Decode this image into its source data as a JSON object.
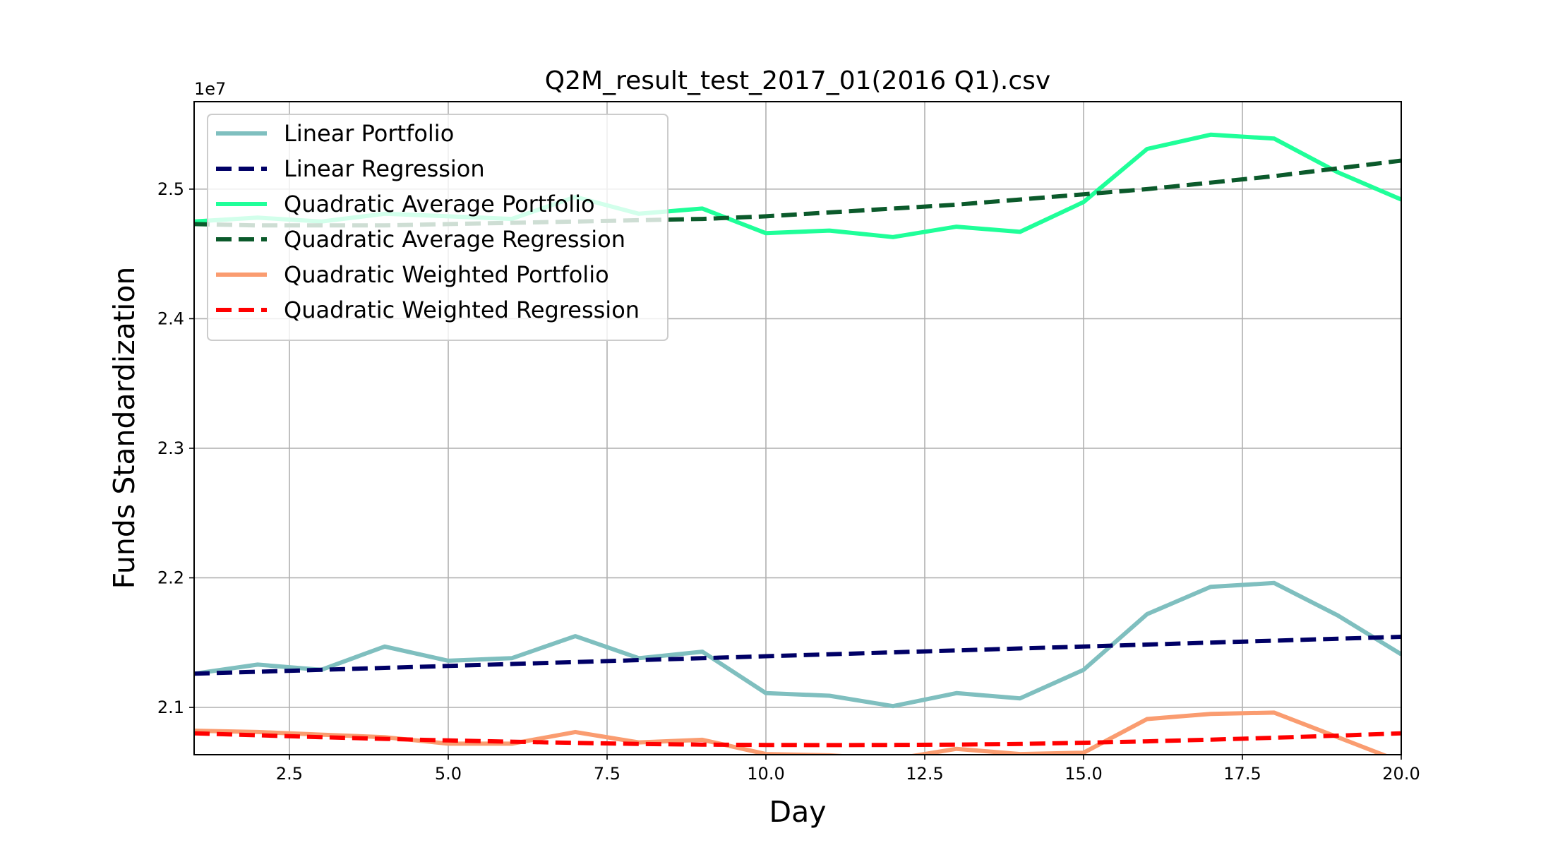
{
  "chart_data": {
    "type": "line",
    "title": "Q2M_result_test_2017_01(2016 Q1).csv",
    "xlabel": "Day",
    "ylabel": "Funds Standardization",
    "y_offset_label": "1e7",
    "xlim": [
      1,
      20
    ],
    "ylim": [
      2.0635,
      2.5675
    ],
    "x_ticks": [
      2.5,
      5.0,
      7.5,
      10.0,
      12.5,
      15.0,
      17.5,
      20.0
    ],
    "x_tick_labels": [
      "2.5",
      "5.0",
      "7.5",
      "10.0",
      "12.5",
      "15.0",
      "17.5",
      "20.0"
    ],
    "y_ticks": [
      2.1,
      2.2,
      2.3,
      2.4,
      2.5
    ],
    "y_tick_labels": [
      "2.1",
      "2.2",
      "2.3",
      "2.4",
      "2.5"
    ],
    "grid": true,
    "legend_position": "upper-left",
    "x": [
      1,
      2,
      3,
      4,
      5,
      6,
      7,
      8,
      9,
      10,
      11,
      12,
      13,
      14,
      15,
      16,
      17,
      18,
      19,
      20
    ],
    "series": [
      {
        "name": "Linear Portfolio",
        "color": "#7fbfbf",
        "style": "solid",
        "values": [
          2.126,
          2.133,
          2.129,
          2.147,
          2.136,
          2.138,
          2.155,
          2.138,
          2.143,
          2.111,
          2.109,
          2.101,
          2.111,
          2.107,
          2.129,
          2.172,
          2.193,
          2.196,
          2.171,
          2.141
        ]
      },
      {
        "name": "Linear Regression",
        "color": "#000066",
        "style": "dashed",
        "values": [
          2.126,
          2.1275,
          2.129,
          2.1305,
          2.132,
          2.1335,
          2.135,
          2.1365,
          2.138,
          2.1395,
          2.141,
          2.1425,
          2.144,
          2.1455,
          2.147,
          2.1485,
          2.15,
          2.1515,
          2.153,
          2.1545
        ]
      },
      {
        "name": "Quadratic Average Portfolio",
        "color": "#1fff99",
        "style": "solid",
        "values": [
          2.475,
          2.478,
          2.475,
          2.481,
          2.479,
          2.477,
          2.494,
          2.481,
          2.485,
          2.466,
          2.468,
          2.463,
          2.471,
          2.467,
          2.49,
          2.531,
          2.542,
          2.539,
          2.513,
          2.492
        ]
      },
      {
        "name": "Quadratic Average Regression",
        "color": "#0b5a2b",
        "style": "dashed",
        "values": [
          2.473,
          2.472,
          2.472,
          2.472,
          2.473,
          2.474,
          2.475,
          2.476,
          2.477,
          2.479,
          2.482,
          2.485,
          2.488,
          2.492,
          2.496,
          2.5,
          2.505,
          2.51,
          2.516,
          2.522
        ]
      },
      {
        "name": "Quadratic Weighted Portfolio",
        "color": "#fa9c70",
        "style": "solid",
        "values": [
          2.082,
          2.081,
          2.079,
          2.077,
          2.072,
          2.072,
          2.081,
          2.073,
          2.075,
          2.064,
          2.063,
          2.06,
          2.068,
          2.064,
          2.065,
          2.091,
          2.095,
          2.096,
          2.077,
          2.058
        ]
      },
      {
        "name": "Quadratic Weighted Regression",
        "color": "#ff0000",
        "style": "dashed",
        "values": [
          2.08,
          2.0785,
          2.077,
          2.0757,
          2.0745,
          2.0735,
          2.0726,
          2.0718,
          2.0713,
          2.071,
          2.0709,
          2.071,
          2.0713,
          2.0718,
          2.0727,
          2.0738,
          2.0751,
          2.0766,
          2.0782,
          2.08
        ]
      }
    ]
  }
}
